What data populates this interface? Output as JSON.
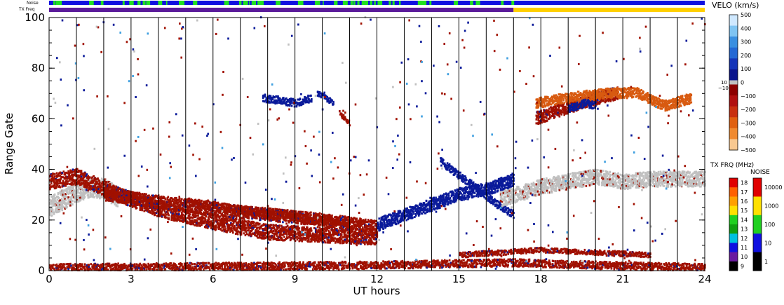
{
  "chart_data": {
    "type": "heatmap",
    "status_bars": {
      "noise_label": "Noise",
      "txfreq_label": "TX Freq",
      "noise_color": "#1010e0",
      "noise_highlight_color": "#20e020",
      "txfreq_color_day": "#5a1a9a",
      "txfreq_color_night": "#ffd000"
    },
    "x_axis": {
      "label": "UT hours",
      "range": [
        0,
        24
      ],
      "ticks": [
        0,
        3,
        6,
        9,
        12,
        15,
        18,
        21,
        24
      ],
      "tick_labels": [
        "0",
        "3",
        "6",
        "9",
        "12",
        "15",
        "18",
        "21",
        "24"
      ],
      "scan_lines": [
        1,
        2,
        3,
        4,
        5,
        6,
        7,
        8,
        9,
        10,
        11,
        12,
        13,
        14,
        15,
        16,
        17,
        18,
        19,
        20,
        21,
        22,
        23
      ]
    },
    "y_axis": {
      "label": "Range Gate",
      "range": [
        0,
        100
      ],
      "ticks": [
        0,
        20,
        40,
        60,
        80,
        100
      ],
      "tick_labels": [
        "0",
        "20",
        "40",
        "60",
        "80",
        "100"
      ]
    },
    "echo_bands": [
      {
        "kind": "ground",
        "points": [
          [
            0,
            25
          ],
          [
            1,
            31
          ],
          [
            1.5,
            33
          ],
          [
            2,
            32
          ],
          [
            2.5,
            29
          ]
        ],
        "width": 8
      },
      {
        "kind": "negative",
        "points": [
          [
            0,
            35
          ],
          [
            1,
            37
          ],
          [
            2.5,
            30
          ],
          [
            4,
            24
          ],
          [
            6,
            19
          ],
          [
            8,
            15
          ],
          [
            10,
            14
          ],
          [
            12,
            13
          ]
        ],
        "width": 6
      },
      {
        "kind": "negative",
        "points": [
          [
            2,
            30
          ],
          [
            4,
            27
          ],
          [
            6,
            24
          ],
          [
            8,
            22
          ],
          [
            10,
            20
          ],
          [
            12,
            17
          ]
        ],
        "width": 5
      },
      {
        "kind": "negative",
        "points": [
          [
            5,
            27
          ],
          [
            7,
            24
          ],
          [
            9,
            21
          ],
          [
            11,
            19
          ]
        ],
        "width": 3
      },
      {
        "kind": "negative",
        "points": [
          [
            0,
            1
          ],
          [
            6,
            1.5
          ],
          [
            12,
            2
          ],
          [
            17,
            3
          ],
          [
            20,
            2
          ],
          [
            24,
            1
          ]
        ],
        "width": 3
      },
      {
        "kind": "negative",
        "points": [
          [
            15,
            6
          ],
          [
            18,
            8
          ],
          [
            20,
            7
          ],
          [
            22,
            6
          ]
        ],
        "width": 2
      },
      {
        "kind": "positive",
        "points": [
          [
            12,
            18
          ],
          [
            13,
            22
          ],
          [
            14,
            26
          ],
          [
            15,
            30
          ],
          [
            16,
            32
          ],
          [
            17,
            36
          ]
        ],
        "width": 5
      },
      {
        "kind": "positive",
        "points": [
          [
            14.3,
            43
          ],
          [
            15.3,
            35
          ],
          [
            16.5,
            25
          ],
          [
            17,
            22
          ]
        ],
        "width": 3
      },
      {
        "kind": "ground",
        "points": [
          [
            16.5,
            28
          ],
          [
            18,
            33
          ],
          [
            20,
            37
          ],
          [
            21,
            35
          ],
          [
            22,
            36
          ],
          [
            24,
            36
          ]
        ],
        "width": 6
      },
      {
        "kind": "negative",
        "points": [
          [
            17.8,
            60
          ],
          [
            18.6,
            63
          ],
          [
            19.4,
            66
          ],
          [
            20,
            68
          ],
          [
            20.8,
            70
          ]
        ],
        "width": 5
      },
      {
        "kind": "orange",
        "points": [
          [
            17.8,
            66
          ],
          [
            18.8,
            68
          ],
          [
            20.5,
            70
          ],
          [
            21.5,
            70
          ],
          [
            22.5,
            65
          ],
          [
            23.5,
            68
          ]
        ],
        "width": 4
      },
      {
        "kind": "positive",
        "points": [
          [
            19,
            64
          ],
          [
            19.6,
            66
          ],
          [
            20,
            65
          ]
        ],
        "width": 3
      },
      {
        "kind": "positive",
        "points": [
          [
            7.8,
            68
          ],
          [
            8.5,
            67
          ],
          [
            9,
            66
          ],
          [
            9.6,
            68
          ]
        ],
        "width": 3
      },
      {
        "kind": "positive",
        "points": [
          [
            9.8,
            70
          ],
          [
            10.4,
            66
          ]
        ],
        "width": 2
      },
      {
        "kind": "negative",
        "points": [
          [
            10.6,
            62
          ],
          [
            11,
            58
          ]
        ],
        "width": 2
      }
    ],
    "velocity_colorbar": {
      "title": "VELO (km/s)",
      "tick_labels": [
        "500",
        "400",
        "300",
        "200",
        "100",
        "0",
        "−100",
        "−200",
        "−300",
        "−400",
        "−500"
      ],
      "ground_label_top": "10",
      "ground_label_bottom": "−10",
      "colors": [
        "#cfe8ff",
        "#7fc4f2",
        "#3a8fe0",
        "#2468d4",
        "#1434b8",
        "#0a148c",
        "#8c0000",
        "#b01010",
        "#c83010",
        "#e06010",
        "#f08a30",
        "#f8c890"
      ]
    },
    "txfreq_colorbar": {
      "title": "TX FRQ (MHz)",
      "tick_labels": [
        "18",
        "17",
        "16",
        "15",
        "14",
        "13",
        "12",
        "11",
        "10",
        "9"
      ],
      "colors": [
        "#e00000",
        "#ff6000",
        "#ffa000",
        "#ffe000",
        "#20d020",
        "#10a010",
        "#00c0e0",
        "#1010e0",
        "#6a1aa0",
        "#000000"
      ]
    },
    "noise_colorbar": {
      "title": "NOISE",
      "tick_labels": [
        "10000",
        "1000",
        "100",
        "10",
        "1"
      ],
      "colors": [
        "#e00000",
        "#ffe000",
        "#20d020",
        "#1010e0",
        "#000000"
      ]
    },
    "colors": {
      "positive": "#0a1a9a",
      "negative": "#a01000",
      "ground": "#c0c0c0",
      "orange": "#d85a10",
      "light_blue": "#40a0e0"
    }
  }
}
